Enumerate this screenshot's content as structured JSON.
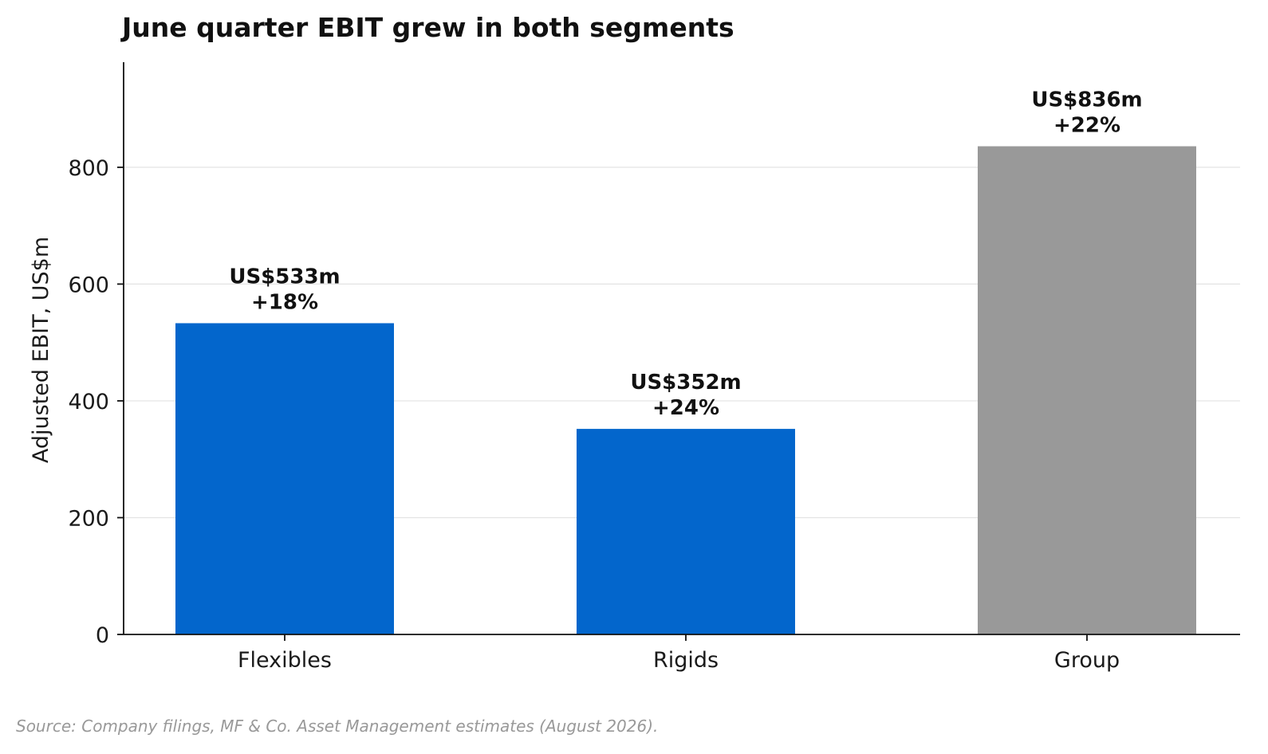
{
  "chart_data": {
    "type": "bar",
    "title": "June quarter EBIT grew in both segments",
    "xlabel": "",
    "ylabel": "Adjusted EBIT, US$m",
    "categories": [
      "Flexibles",
      "Rigids",
      "Group"
    ],
    "values": [
      533,
      352,
      836
    ],
    "bar_labels": [
      [
        "US$533m",
        "+18%"
      ],
      [
        "US$352m",
        "+24%"
      ],
      [
        "US$836m",
        "+22%"
      ]
    ],
    "bar_colors": [
      "#0366cc",
      "#0366cc",
      "#999999"
    ],
    "ylim": [
      0,
      980
    ],
    "yticks": [
      0,
      200,
      400,
      600,
      800
    ],
    "grid": "horizontal",
    "legend": "none"
  },
  "source": "Source: Company filings, MF & Co. Asset Management estimates (August 2026)."
}
